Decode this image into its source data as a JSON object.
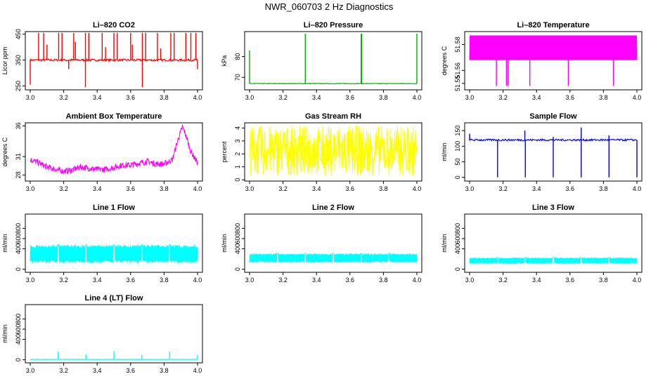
{
  "figure_title": "NWR_060703  2 Hz Diagnostics",
  "chart_data": [
    {
      "id": "co2",
      "type": "line",
      "title": "Li–820 CO2",
      "ylabel": "Licor ppm",
      "color": "#ff0000",
      "xlim": [
        3.0,
        4.0
      ],
      "ylim": [
        235,
        460
      ],
      "xticks": [
        3.0,
        3.2,
        3.4,
        3.6,
        3.8,
        4.0
      ],
      "xtick_labels": [
        "3.0",
        "3.2",
        "3.4",
        "3.6",
        "3.8",
        "4.0"
      ],
      "yticks": [
        250,
        350,
        450
      ],
      "ytick_labels": [
        "250",
        "350",
        "450"
      ],
      "baseline": 350,
      "noise": 4,
      "spikes": [
        [
          3.0,
          255
        ],
        [
          3.05,
          455
        ],
        [
          3.08,
          455
        ],
        [
          3.1,
          410
        ],
        [
          3.17,
          455
        ],
        [
          3.19,
          455
        ],
        [
          3.23,
          315
        ],
        [
          3.26,
          455
        ],
        [
          3.27,
          420
        ],
        [
          3.33,
          455
        ],
        [
          3.33,
          245
        ],
        [
          3.35,
          455
        ],
        [
          3.43,
          455
        ],
        [
          3.45,
          400
        ],
        [
          3.5,
          455
        ],
        [
          3.52,
          455
        ],
        [
          3.6,
          455
        ],
        [
          3.61,
          410
        ],
        [
          3.67,
          455
        ],
        [
          3.67,
          245
        ],
        [
          3.69,
          455
        ],
        [
          3.76,
          455
        ],
        [
          3.78,
          395
        ],
        [
          3.84,
          455
        ],
        [
          3.86,
          455
        ],
        [
          3.93,
          455
        ],
        [
          3.96,
          455
        ],
        [
          3.99,
          455
        ],
        [
          4.0,
          315
        ]
      ]
    },
    {
      "id": "pressure",
      "type": "line",
      "title": "Li–820 Pressure",
      "ylabel": "kPa",
      "color": "#00b000",
      "xlim": [
        3.0,
        4.0
      ],
      "ylim": [
        64,
        92
      ],
      "xticks": [
        3.0,
        3.2,
        3.4,
        3.6,
        3.8,
        4.0
      ],
      "xtick_labels": [
        "3.0",
        "3.2",
        "3.4",
        "3.6",
        "3.8",
        "4.0"
      ],
      "yticks": [
        70,
        80
      ],
      "ytick_labels": [
        "70",
        "80"
      ],
      "baseline": 67,
      "noise": 0.15,
      "spikes": [
        [
          3.0,
          83
        ],
        [
          3.333,
          91
        ],
        [
          3.667,
          91
        ],
        [
          3.67,
          91
        ],
        [
          4.0,
          91
        ]
      ]
    },
    {
      "id": "temperature",
      "type": "line",
      "title": "Li–820 Temperature",
      "ylabel": "degrees C",
      "color": "#ff00ff",
      "xlim": [
        3.0,
        4.0
      ],
      "ylim": [
        51.545,
        51.59
      ],
      "xticks": [
        3.0,
        3.2,
        3.4,
        3.6,
        3.8,
        4.0
      ],
      "xtick_labels": [
        "3.0",
        "3.2",
        "3.4",
        "3.6",
        "3.8",
        "4.0"
      ],
      "yticks": [
        51.55,
        51.56,
        51.58
      ],
      "ytick_labels": [
        "51.55",
        "51.56",
        "51.58"
      ],
      "levels": [
        51.568,
        51.587
      ],
      "spikes": [
        [
          3.16,
          51.548
        ],
        [
          3.22,
          51.548
        ],
        [
          3.23,
          51.548
        ],
        [
          3.36,
          51.548
        ],
        [
          3.59,
          51.548
        ],
        [
          3.86,
          51.548
        ]
      ]
    },
    {
      "id": "ambient",
      "type": "line",
      "title": "Ambient Box Temperature",
      "ylabel": "degrees C",
      "color": "#ff00ff",
      "xlim": [
        3.0,
        4.0
      ],
      "ylim": [
        27,
        36.5
      ],
      "xticks": [
        3.0,
        3.2,
        3.4,
        3.6,
        3.8,
        4.0
      ],
      "xtick_labels": [
        "3.0",
        "3.2",
        "3.4",
        "3.6",
        "3.8",
        "4.0"
      ],
      "yticks": [
        28,
        31,
        36
      ],
      "ytick_labels": [
        "28",
        "31",
        "36"
      ],
      "x": [
        3.0,
        3.05,
        3.1,
        3.15,
        3.2,
        3.25,
        3.3,
        3.35,
        3.4,
        3.45,
        3.5,
        3.55,
        3.6,
        3.65,
        3.7,
        3.75,
        3.8,
        3.85,
        3.88,
        3.91,
        3.93,
        3.96,
        4.0
      ],
      "values": [
        30.5,
        30.0,
        29.3,
        28.9,
        28.6,
        28.8,
        29.3,
        29.1,
        28.9,
        28.9,
        29.2,
        29.6,
        29.6,
        29.9,
        30.2,
        29.8,
        29.8,
        30.5,
        33.5,
        35.9,
        34.5,
        31.8,
        30.0
      ],
      "noise": 0.5
    },
    {
      "id": "rh",
      "type": "line",
      "title": "Gas Stream RH",
      "ylabel": "percent",
      "color": "#ffff00",
      "xlim": [
        3.0,
        4.0
      ],
      "ylim": [
        -0.1,
        4.4
      ],
      "xticks": [
        3.0,
        3.2,
        3.4,
        3.6,
        3.8,
        4.0
      ],
      "xtick_labels": [
        "3.0",
        "3.2",
        "3.4",
        "3.6",
        "3.8",
        "4.0"
      ],
      "yticks": [
        0,
        1,
        2,
        3,
        4
      ],
      "ytick_labels": [
        "0",
        "1",
        "2",
        "3",
        "4"
      ],
      "band": [
        0.3,
        4.2
      ]
    },
    {
      "id": "sample_flow",
      "type": "line",
      "title": "Sample Flow",
      "ylabel": "ml/min",
      "color": "#0000ff",
      "xlim": [
        3.0,
        4.0
      ],
      "ylim": [
        -12,
        175
      ],
      "xticks": [
        3.0,
        3.2,
        3.4,
        3.6,
        3.8,
        4.0
      ],
      "xtick_labels": [
        "3.0",
        "3.2",
        "3.4",
        "3.6",
        "3.8",
        "4.0"
      ],
      "yticks": [
        0,
        50,
        100,
        150
      ],
      "ytick_labels": [
        "0",
        "50",
        "100",
        "150"
      ],
      "baseline": 120,
      "noise": 3,
      "spikes": [
        [
          3.0,
          140
        ],
        [
          3.167,
          0
        ],
        [
          3.33,
          150
        ],
        [
          3.333,
          0
        ],
        [
          3.5,
          0
        ],
        [
          3.5,
          130
        ],
        [
          3.667,
          0
        ],
        [
          3.667,
          160
        ],
        [
          3.833,
          0
        ],
        [
          3.833,
          135
        ],
        [
          4.0,
          0
        ]
      ]
    },
    {
      "id": "line1",
      "type": "line",
      "title": "Line 1 Flow",
      "ylabel": "ml/min",
      "color": "#00ffff",
      "xlim": [
        3.0,
        4.0
      ],
      "ylim": [
        -60,
        1080
      ],
      "xticks": [
        3.0,
        3.2,
        3.4,
        3.6,
        3.8,
        4.0
      ],
      "xtick_labels": [
        "3.0",
        "3.2",
        "3.4",
        "3.6",
        "3.8",
        "4.0"
      ],
      "yticks": [
        0,
        400,
        600,
        800
      ],
      "ytick_labels": [
        "0",
        "400",
        "600",
        "800"
      ],
      "band": [
        120,
        480
      ],
      "gaps": [
        3.167,
        3.333,
        3.5,
        3.667,
        3.833
      ]
    },
    {
      "id": "line2",
      "type": "line",
      "title": "Line 2 Flow",
      "ylabel": "ml/min",
      "color": "#00ffff",
      "xlim": [
        3.0,
        4.0
      ],
      "ylim": [
        -60,
        1080
      ],
      "xticks": [
        3.0,
        3.2,
        3.4,
        3.6,
        3.8,
        4.0
      ],
      "xtick_labels": [
        "3.0",
        "3.2",
        "3.4",
        "3.6",
        "3.8",
        "4.0"
      ],
      "yticks": [
        0,
        400,
        600,
        800
      ],
      "ytick_labels": [
        "0",
        "400",
        "600",
        "800"
      ],
      "band": [
        130,
        310
      ],
      "gaps": [
        3.167,
        3.333,
        3.5,
        3.667,
        3.833
      ]
    },
    {
      "id": "line3",
      "type": "line",
      "title": "Line 3 Flow",
      "ylabel": "ml/min",
      "color": "#00ffff",
      "xlim": [
        3.0,
        4.0
      ],
      "ylim": [
        -60,
        1080
      ],
      "xticks": [
        3.0,
        3.2,
        3.4,
        3.6,
        3.8,
        4.0
      ],
      "xtick_labels": [
        "3.0",
        "3.2",
        "3.4",
        "3.6",
        "3.8",
        "4.0"
      ],
      "yticks": [
        0,
        400,
        600,
        800
      ],
      "ytick_labels": [
        "0",
        "400",
        "600",
        "800"
      ],
      "band": [
        110,
        230
      ],
      "gaps": [
        3.167,
        3.333,
        3.5,
        3.667,
        3.833
      ]
    },
    {
      "id": "line4",
      "type": "line",
      "title": "Line 4 (LT) Flow",
      "ylabel": "ml/min",
      "color": "#00ffff",
      "xlim": [
        3.0,
        4.0
      ],
      "ylim": [
        -60,
        1080
      ],
      "xticks": [
        3.0,
        3.2,
        3.4,
        3.6,
        3.8,
        4.0
      ],
      "xtick_labels": [
        "3.0",
        "3.2",
        "3.4",
        "3.6",
        "3.8",
        "4.0"
      ],
      "yticks": [
        0,
        400,
        600,
        800
      ],
      "ytick_labels": [
        "0",
        "400",
        "600",
        "800"
      ],
      "baseline": 8,
      "noise": 2,
      "spikes": [
        [
          3.167,
          160
        ],
        [
          3.333,
          100
        ],
        [
          3.5,
          170
        ],
        [
          3.667,
          95
        ],
        [
          3.833,
          165
        ],
        [
          4.0,
          95
        ]
      ]
    }
  ]
}
